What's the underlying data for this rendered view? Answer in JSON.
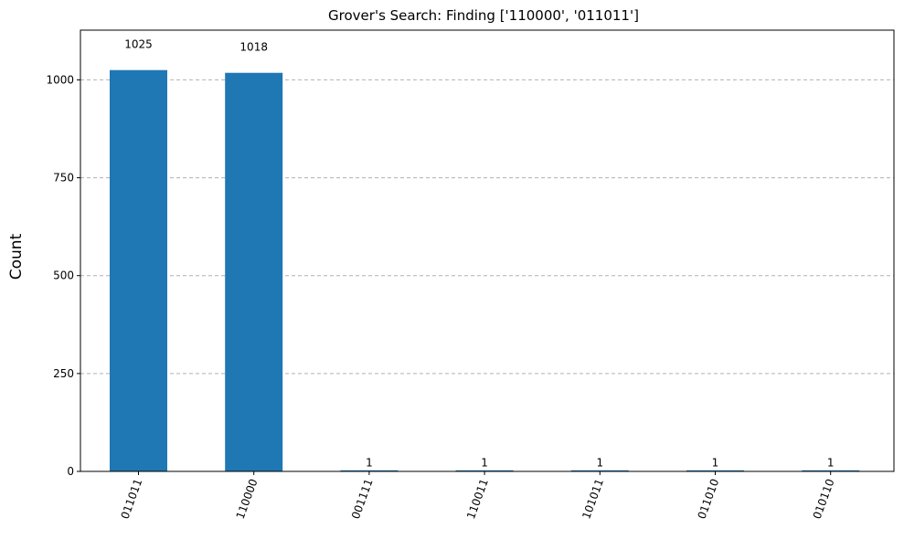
{
  "chart_data": {
    "type": "bar",
    "title": "Grover's Search: Finding ['110000', '011011']",
    "xlabel": "",
    "ylabel": "Count",
    "categories": [
      "011011",
      "110000",
      "001111",
      "110011",
      "101011",
      "011010",
      "010110"
    ],
    "values": [
      1025,
      1018,
      1,
      1,
      1,
      1,
      1
    ],
    "data_labels": [
      "1025",
      "1018",
      "1",
      "1",
      "1",
      "1",
      "1"
    ],
    "ylim": [
      0,
      1127
    ],
    "yticks": [
      0,
      250,
      500,
      750,
      1000
    ],
    "grid": "horizontal-dashed",
    "legend": "none",
    "x_tick_rotation": 70,
    "bar_color": "#1f77b4"
  }
}
